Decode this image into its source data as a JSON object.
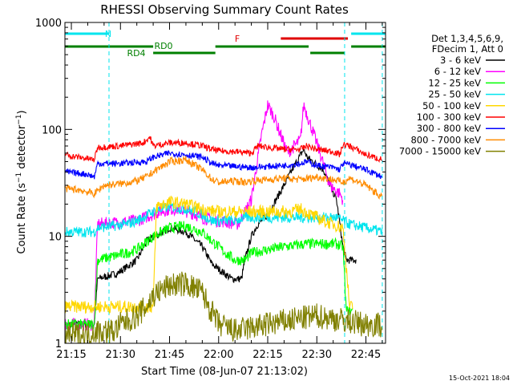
{
  "chart_data": {
    "type": "line",
    "title": "RHESSI Observing Summary Count Rates",
    "xlabel": "Start Time (08-Jun-07 21:13:02)",
    "ylabel": "Count Rate (s⁻¹ detector⁻¹)",
    "ylabel_parts": {
      "a": "Count Rate (s",
      "sup1": "−1",
      "b": " detector",
      "sup2": "−1",
      "c": ")"
    },
    "y_scale": "log",
    "ylim": [
      1,
      1000
    ],
    "xlim": [
      "21:13:02",
      "22:51:00"
    ],
    "x_tick_labels": [
      "21:15",
      "21:30",
      "21:45",
      "22:00",
      "22:15",
      "22:30",
      "22:45"
    ],
    "y_tick_labels": [
      "1",
      "10",
      "100",
      "1000"
    ],
    "legend_position": "right",
    "legend_header": [
      "Det 1,3,4,5,6,9,",
      "FDecim 1, Att 0"
    ],
    "footer_stamp": "15-Oct-2021 18:04",
    "flags": [
      {
        "label": "N",
        "color": "#00e5ee",
        "intervals": [
          [
            "21:13:02",
            "21:26:30"
          ],
          [
            "22:40:30",
            "22:51:00"
          ]
        ]
      },
      {
        "label": "F",
        "color": "#e00000",
        "intervals": [
          [
            "22:19:00",
            "22:39:30"
          ]
        ]
      },
      {
        "label": "RD0",
        "color": "#008000",
        "intervals": [
          [
            "21:13:02",
            "21:40:00"
          ],
          [
            "21:59:00",
            "22:27:30"
          ],
          [
            "22:40:30",
            "22:51:00"
          ]
        ]
      },
      {
        "label": "RD4",
        "color": "#008000",
        "intervals": [
          [
            "21:40:00",
            "21:59:00"
          ],
          [
            "22:28:00",
            "22:38:30"
          ]
        ]
      }
    ],
    "vertical_markers": [
      {
        "time": "21:26:30",
        "color": "#00e5ee"
      },
      {
        "time": "22:38:30",
        "color": "#00e5ee"
      },
      {
        "time": "22:50:00",
        "color": "#00e5ee"
      }
    ],
    "series": [
      {
        "name": "3 - 6 keV",
        "color": "#000000",
        "x": [
          "21:13",
          "21:22",
          "21:23",
          "21:29",
          "21:35",
          "21:38",
          "21:45",
          "21:50",
          "21:55",
          "21:58",
          "22:04",
          "22:07",
          "22:08",
          "22:10",
          "22:12",
          "22:15",
          "22:20",
          "22:23",
          "22:26",
          "22:27",
          "22:32",
          "22:36",
          "22:38",
          "22:39",
          "22:41",
          "22:42"
        ],
        "y": [
          1.5,
          1.5,
          4,
          4.5,
          6,
          9,
          12,
          11,
          8,
          5.5,
          4,
          4,
          6,
          10,
          13,
          16,
          30,
          45,
          65,
          55,
          42,
          22,
          8,
          6,
          6,
          6
        ]
      },
      {
        "name": "6 - 12 keV",
        "color": "#ff00ff",
        "x": [
          "21:13",
          "21:15",
          "21:22",
          "21:23",
          "21:35",
          "21:42",
          "21:45",
          "21:48",
          "21:53",
          "21:55",
          "21:59",
          "22:00",
          "22:06",
          "22:10",
          "22:13",
          "22:15",
          "22:17",
          "22:21",
          "22:25",
          "22:26",
          "22:31",
          "22:34",
          "22:37",
          "22:38"
        ],
        "y": [
          1.5,
          1.5,
          1.5,
          13,
          14,
          17,
          18,
          18,
          16,
          15,
          14,
          14,
          13,
          22,
          85,
          170,
          130,
          60,
          80,
          170,
          60,
          30,
          25,
          22
        ]
      },
      {
        "name": "12 - 25 keV",
        "color": "#00ff00",
        "x": [
          "21:13",
          "21:22",
          "21:23",
          "21:32",
          "21:35",
          "21:40",
          "21:45",
          "21:50",
          "21:55",
          "21:58",
          "22:00",
          "22:02",
          "22:05",
          "22:08",
          "22:10",
          "22:15",
          "22:20",
          "22:27",
          "22:28",
          "22:36",
          "22:38",
          "22:39",
          "22:40",
          "22:41"
        ],
        "y": [
          1.5,
          1.5,
          6,
          7,
          7.5,
          10,
          12,
          12.5,
          11,
          9,
          8,
          7,
          6,
          6,
          7,
          7.5,
          8,
          8.5,
          8.5,
          8.5,
          8,
          2,
          2,
          2
        ]
      },
      {
        "name": "25 - 50 keV",
        "color": "#00e5ee",
        "x": [
          "21:13",
          "21:22",
          "21:23",
          "21:32",
          "21:35",
          "21:40",
          "21:45",
          "21:50",
          "21:55",
          "21:58",
          "22:00",
          "22:05",
          "22:08",
          "22:15",
          "22:22",
          "22:25",
          "22:28",
          "22:32",
          "22:36",
          "22:38",
          "22:40",
          "22:45",
          "22:50"
        ],
        "y": [
          11,
          11,
          12,
          13,
          14,
          17,
          19,
          18,
          16,
          14,
          14,
          14,
          15,
          15,
          15,
          15,
          15,
          15,
          15,
          14,
          13,
          12,
          11
        ]
      },
      {
        "name": "50 - 100 keV",
        "color": "#ffd700",
        "x": [
          "21:13",
          "21:40",
          "21:41",
          "21:45",
          "21:50",
          "21:55",
          "21:59",
          "22:00",
          "22:22",
          "22:25",
          "22:28",
          "22:30",
          "22:32",
          "22:35",
          "22:38",
          "22:40",
          "22:41"
        ],
        "y": [
          2.2,
          2.2,
          19,
          21,
          20,
          18,
          17,
          17,
          17,
          18,
          16,
          15,
          14,
          13,
          12,
          2.2,
          2.2
        ]
      },
      {
        "name": "100 - 300 keV",
        "color": "#ff0000",
        "x": [
          "21:13",
          "21:14",
          "21:22",
          "21:23",
          "21:30",
          "21:37",
          "21:39",
          "21:40",
          "21:45",
          "21:50",
          "21:55",
          "21:58",
          "22:00",
          "22:05",
          "22:10",
          "22:12",
          "22:15",
          "22:20",
          "22:25",
          "22:27",
          "22:30",
          "22:35",
          "22:37",
          "22:38",
          "22:40",
          "22:45",
          "22:50"
        ],
        "y": [
          60,
          57,
          52,
          68,
          70,
          75,
          85,
          70,
          75,
          75,
          70,
          65,
          63,
          62,
          60,
          70,
          68,
          65,
          65,
          70,
          65,
          62,
          58,
          72,
          70,
          58,
          52
        ]
      },
      {
        "name": "300 - 800 keV",
        "color": "#0000ff",
        "x": [
          "21:13",
          "21:20",
          "21:22",
          "21:23",
          "21:30",
          "21:38",
          "21:40",
          "21:45",
          "21:50",
          "21:55",
          "21:58",
          "22:00",
          "22:05",
          "22:10",
          "22:15",
          "22:20",
          "22:25",
          "22:27",
          "22:30",
          "22:35",
          "22:37",
          "22:38",
          "22:40",
          "22:45",
          "22:50"
        ],
        "y": [
          40,
          38,
          36,
          48,
          48,
          50,
          55,
          60,
          58,
          55,
          48,
          46,
          45,
          44,
          45,
          46,
          48,
          50,
          46,
          44,
          42,
          48,
          47,
          42,
          36
        ]
      },
      {
        "name": "800 - 7000 keV",
        "color": "#ff8c00",
        "x": [
          "21:13",
          "21:18",
          "21:22",
          "21:25",
          "21:30",
          "21:35",
          "21:38",
          "21:40",
          "21:45",
          "21:50",
          "21:55",
          "21:58",
          "22:00",
          "22:05",
          "22:08",
          "22:10",
          "22:15",
          "22:20",
          "22:25",
          "22:30",
          "22:35",
          "22:38",
          "22:40",
          "22:45",
          "22:50"
        ],
        "y": [
          28,
          27,
          25,
          30,
          31,
          33,
          36,
          40,
          50,
          52,
          42,
          34,
          32,
          33,
          32,
          33,
          34,
          35,
          34,
          36,
          34,
          32,
          35,
          30,
          23
        ]
      },
      {
        "name": "7000 - 15000 keV",
        "color": "#808000",
        "x": [
          "21:13",
          "21:20",
          "21:22",
          "21:28",
          "21:30",
          "21:35",
          "21:38",
          "21:40",
          "21:45",
          "21:50",
          "21:55",
          "21:57",
          "22:00",
          "22:05",
          "22:10",
          "22:15",
          "22:20",
          "22:25",
          "22:30",
          "22:35",
          "22:40",
          "22:45",
          "22:50"
        ],
        "y": [
          1.2,
          1.2,
          1.3,
          1.3,
          1.5,
          1.8,
          2.2,
          2.8,
          3.5,
          3.6,
          3.0,
          2.2,
          1.5,
          1.3,
          1.4,
          1.5,
          1.6,
          1.7,
          1.8,
          1.7,
          1.6,
          1.5,
          1.5
        ]
      }
    ]
  }
}
